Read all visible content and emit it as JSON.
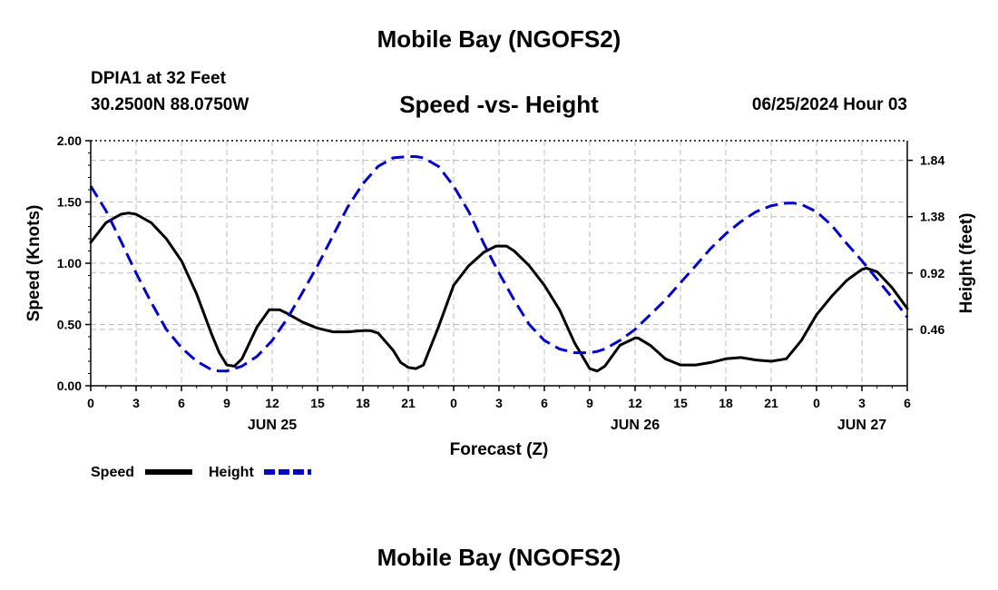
{
  "page": {
    "title": "Mobile Bay (NGOFS2)",
    "station": "DPIA1 at 32 Feet",
    "coordinates": "30.2500N  88.0750W",
    "subtitle": "Speed -vs- Height",
    "datetime": "06/25/2024 Hour 03",
    "footer_title": "Mobile Bay (NGOFS2)"
  },
  "chart_data": {
    "type": "line",
    "title": "Speed -vs- Height",
    "xlabel": "Forecast (Z)",
    "ylabel": "Speed (Knots)",
    "y2label": "Height (feet)",
    "xlim": [
      0,
      54
    ],
    "ylim": [
      0,
      2.0
    ],
    "y2lim": [
      0,
      2.0
    ],
    "x_ticks": [
      0,
      3,
      6,
      9,
      12,
      15,
      18,
      21,
      24,
      27,
      30,
      33,
      36,
      39,
      42,
      45,
      48,
      51,
      54
    ],
    "x_tick_labels": [
      "0",
      "3",
      "6",
      "9",
      "12",
      "15",
      "18",
      "21",
      "0",
      "3",
      "6",
      "9",
      "12",
      "15",
      "18",
      "21",
      "0",
      "3",
      "6"
    ],
    "y_ticks": [
      0.0,
      0.5,
      1.0,
      1.5,
      2.0
    ],
    "y_tick_labels": [
      "0.00",
      "0.50",
      "1.00",
      "1.50",
      "2.00"
    ],
    "y2_ticks": [
      0.46,
      0.92,
      1.38,
      1.84
    ],
    "y2_tick_labels": [
      "0.46",
      "0.92",
      "1.38",
      "1.84"
    ],
    "day_labels": [
      {
        "x": 12,
        "label": "JUN 25"
      },
      {
        "x": 36,
        "label": "JUN 26"
      },
      {
        "x": 51,
        "label": "JUN 27"
      }
    ],
    "grid": true,
    "legend": [
      {
        "label": "Speed",
        "color": "#000000",
        "style": "solid"
      },
      {
        "label": "Height",
        "color": "#0000cc",
        "style": "dashed"
      }
    ],
    "series": [
      {
        "name": "Speed",
        "axis": "left",
        "color": "#000000",
        "style": "solid",
        "x": [
          0,
          1,
          2,
          2.5,
          3,
          4,
          5,
          6,
          7,
          8,
          8.5,
          9,
          9.5,
          10,
          11,
          11.8,
          12.5,
          13,
          14,
          15,
          16,
          17,
          18,
          18.5,
          19,
          20,
          20.5,
          21,
          21.5,
          22,
          23,
          24,
          25,
          26,
          26.8,
          27.5,
          28,
          29,
          30,
          31,
          32,
          33,
          33.5,
          34,
          35,
          36,
          36.2,
          37,
          38,
          39,
          40,
          41,
          42,
          43,
          44,
          45,
          46,
          47,
          48,
          49,
          50,
          51,
          51.3,
          52,
          53,
          54
        ],
        "values": [
          1.17,
          1.33,
          1.4,
          1.41,
          1.4,
          1.33,
          1.2,
          1.02,
          0.75,
          0.42,
          0.27,
          0.17,
          0.16,
          0.22,
          0.48,
          0.62,
          0.62,
          0.59,
          0.52,
          0.47,
          0.44,
          0.44,
          0.45,
          0.45,
          0.43,
          0.29,
          0.19,
          0.15,
          0.14,
          0.17,
          0.48,
          0.82,
          0.98,
          1.09,
          1.14,
          1.14,
          1.1,
          0.98,
          0.82,
          0.62,
          0.35,
          0.14,
          0.12,
          0.16,
          0.33,
          0.39,
          0.39,
          0.33,
          0.22,
          0.17,
          0.17,
          0.19,
          0.22,
          0.23,
          0.21,
          0.2,
          0.22,
          0.37,
          0.58,
          0.73,
          0.86,
          0.95,
          0.96,
          0.93,
          0.8,
          0.63
        ]
      },
      {
        "name": "Height",
        "axis": "right",
        "color": "#0000cc",
        "style": "dashed",
        "x": [
          0,
          1,
          2,
          3,
          4,
          5,
          6,
          7,
          8,
          8.5,
          9,
          10,
          11,
          12,
          13,
          14,
          15,
          16,
          17,
          18,
          19,
          20,
          21,
          21.5,
          22,
          23,
          24,
          25,
          26,
          27,
          28,
          29,
          30,
          31,
          32,
          33,
          33.5,
          34,
          35,
          36,
          37,
          38,
          39,
          40,
          41,
          42,
          43,
          44,
          45,
          46,
          46.5,
          47,
          48,
          49,
          50,
          51,
          52,
          53,
          54
        ],
        "values": [
          1.63,
          1.43,
          1.18,
          0.92,
          0.68,
          0.46,
          0.31,
          0.2,
          0.13,
          0.12,
          0.12,
          0.16,
          0.24,
          0.37,
          0.55,
          0.76,
          0.98,
          1.22,
          1.46,
          1.65,
          1.79,
          1.86,
          1.87,
          1.87,
          1.86,
          1.79,
          1.63,
          1.42,
          1.16,
          0.92,
          0.7,
          0.5,
          0.37,
          0.3,
          0.27,
          0.27,
          0.28,
          0.3,
          0.37,
          0.46,
          0.58,
          0.7,
          0.84,
          0.98,
          1.12,
          1.24,
          1.34,
          1.42,
          1.47,
          1.49,
          1.49,
          1.48,
          1.42,
          1.31,
          1.16,
          1.02,
          0.87,
          0.72,
          0.56
        ]
      }
    ]
  }
}
